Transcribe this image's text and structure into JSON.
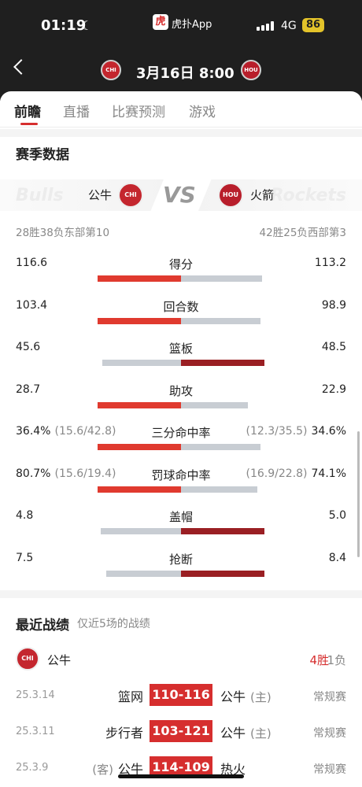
{
  "status": {
    "time": "01:19",
    "app": "虎扑App",
    "app_logo_char": "虎",
    "network": "4G",
    "battery": "86"
  },
  "header": {
    "match_time": "3月16日 8:00",
    "home_logo_text": "CHI",
    "away_logo_text": "HOU"
  },
  "tabs": [
    {
      "label": "前瞻"
    },
    {
      "label": "直播"
    },
    {
      "label": "比赛预测"
    },
    {
      "label": "游戏"
    }
  ],
  "season": {
    "title": "赛季数据",
    "home": {
      "name": "公牛",
      "ghost": "Bulls",
      "logo_text": "CHI",
      "record": "28胜38负东部第10"
    },
    "away": {
      "name": "火箭",
      "ghost": "Rockets",
      "logo_text": "HOU",
      "record": "42胜25负西部第3"
    },
    "vs": "VS",
    "stats": [
      {
        "label": "得分",
        "home": "116.6",
        "away": "113.2",
        "home_val": 116.6,
        "away_val": 113.2,
        "leader": "home"
      },
      {
        "label": "回合数",
        "home": "103.4",
        "away": "98.9",
        "home_val": 103.4,
        "away_val": 98.9,
        "leader": "home"
      },
      {
        "label": "篮板",
        "home": "45.6",
        "away": "48.5",
        "home_val": 45.6,
        "away_val": 48.5,
        "leader": "away"
      },
      {
        "label": "助攻",
        "home": "28.7",
        "away": "22.9",
        "home_val": 28.7,
        "away_val": 22.9,
        "leader": "home"
      },
      {
        "label": "三分命中率",
        "home": "36.4%",
        "home_sub": "(15.6/42.8)",
        "away": "34.6%",
        "away_sub": "(12.3/35.5)",
        "home_val": 36.4,
        "away_val": 34.6,
        "leader": "home"
      },
      {
        "label": "罚球命中率",
        "home": "80.7%",
        "home_sub": "(15.6/19.4)",
        "away": "74.1%",
        "away_sub": "(16.9/22.8)",
        "home_val": 80.7,
        "away_val": 74.1,
        "leader": "home"
      },
      {
        "label": "盖帽",
        "home": "4.8",
        "away": "5.0",
        "home_val": 4.8,
        "away_val": 5.0,
        "leader": "away"
      },
      {
        "label": "抢断",
        "home": "7.5",
        "away": "8.4",
        "home_val": 7.5,
        "away_val": 8.4,
        "leader": "away"
      }
    ]
  },
  "recent": {
    "title": "最近战绩",
    "subtitle": "仅近5场的战绩",
    "team": "公牛",
    "team_logo_text": "CHI",
    "wins": "4胜",
    "losses": "1负",
    "games": [
      {
        "date": "25.3.14",
        "left": "篮网",
        "left_tag": "",
        "score": "110-116",
        "right": "公牛",
        "right_tag": "(主)",
        "type": "常规赛"
      },
      {
        "date": "25.3.11",
        "left": "步行者",
        "left_tag": "",
        "score": "103-121",
        "right": "公牛",
        "right_tag": "(主)",
        "type": "常规赛"
      },
      {
        "date": "25.3.9",
        "left": "公牛",
        "left_tag": "(客)",
        "score": "114-109",
        "right": "热火",
        "right_tag": "",
        "type": "常规赛"
      }
    ]
  },
  "colors": {
    "accent": "#d62e2e",
    "home_bar": "#e03a2f",
    "away_bar": "#9a1f23",
    "muted_bar": "#c8cdd3"
  }
}
